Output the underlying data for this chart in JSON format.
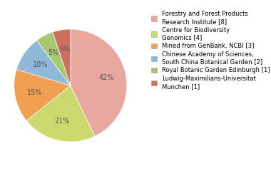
{
  "labels": [
    "Forestry and Forest Products\nResearch Institute [8]",
    "Centre for Biodiversity\nGenomics [4]",
    "Mined from GenBank, NCBI [3]",
    "Chinese Academy of Sciences,\nSouth China Botanical Garden [2]",
    "Royal Botanic Garden Edinburgh [1]",
    "Ludwig-Maximilians-Universitat\nMunchen [1]"
  ],
  "values": [
    42,
    21,
    15,
    10,
    5,
    5
  ],
  "colors": [
    "#e8a8a0",
    "#cdd96e",
    "#f0a050",
    "#90b8d8",
    "#a8c870",
    "#cc7060"
  ],
  "startangle": 90,
  "counterclock": false,
  "pct_labels": [
    "42%",
    "21%",
    "15%",
    "10%",
    "5%",
    "5%"
  ],
  "figsize": [
    3.8,
    2.4
  ],
  "dpi": 100,
  "legend_fontsize": 6.0,
  "pct_fontsize": 7.0,
  "pct_color": "#555555"
}
